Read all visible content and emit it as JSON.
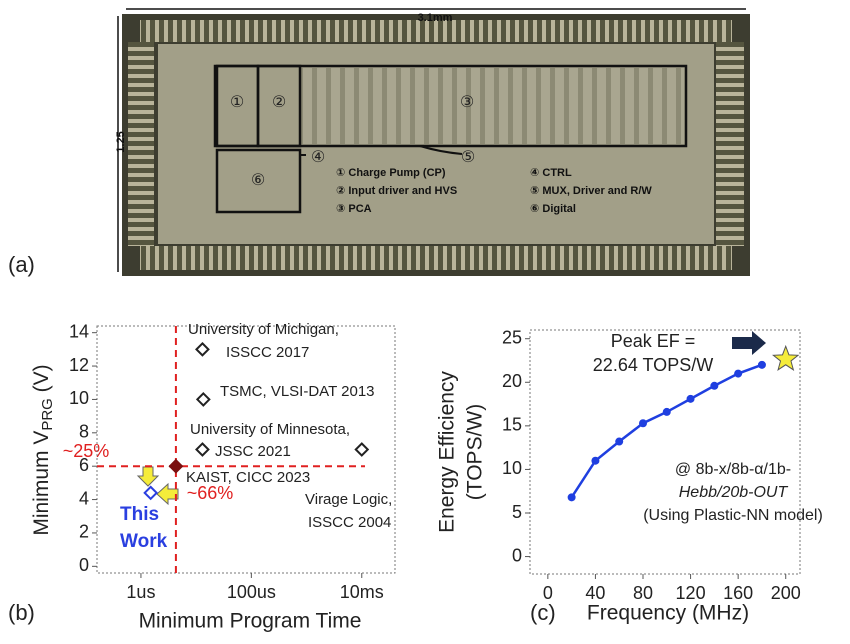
{
  "die_photo": {
    "panel_label": "(a)",
    "width_label": "3.1mm",
    "height_label": "1.25",
    "blocks": [
      "①",
      "②",
      "③",
      "④",
      "⑤",
      "⑥"
    ],
    "legend": [
      "① Charge Pump (CP)",
      "② Input driver and HVS",
      "③ PCA",
      "④ CTRL",
      "⑤ MUX, Driver and R/W",
      "⑥ Digital"
    ]
  },
  "chart_data": [
    {
      "type": "scatter",
      "panel_label": "(b)",
      "ylabel": [
        "Minimum V",
        "PRG",
        " (V)"
      ],
      "xlabel": "Minimum Program Time",
      "log_x": true,
      "xlim": [
        1.6e-07,
        0.04
      ],
      "ylim": [
        -0.4,
        14.4
      ],
      "xticks": [
        {
          "value": 1e-06,
          "label": "1us"
        },
        {
          "value": 0.0001,
          "label": "100us"
        },
        {
          "value": 0.01,
          "label": "10ms"
        }
      ],
      "yticks": [
        0,
        2,
        4,
        6,
        8,
        10,
        12,
        14
      ],
      "points": [
        {
          "label": [
            "University of Michigan,",
            "ISSCC 2017"
          ],
          "x": 1.3e-05,
          "y": 13,
          "color": "#222222"
        },
        {
          "label": [
            "TSMC, VLSI-DAT 2013"
          ],
          "x": 1.35e-05,
          "y": 10,
          "color": "#222222"
        },
        {
          "label": [
            "University of Minnesota,",
            "JSSC 2021"
          ],
          "x": 1.3e-05,
          "y": 7,
          "color": "#222222"
        },
        {
          "label": [
            "KAIST, CICC 2023"
          ],
          "x": 4.3e-06,
          "y": 6,
          "color": "#7a1010"
        },
        {
          "label": [
            "Virage Logic,",
            "ISSCC 2004"
          ],
          "x": 0.01,
          "y": 7,
          "color": "#222222"
        },
        {
          "label": [
            "This",
            "Work"
          ],
          "x": 1.5e-06,
          "y": 4.4,
          "color": "#2a3fe0"
        }
      ],
      "reference_lines": {
        "x": 4.3e-06,
        "y": 6,
        "color": "#e02020"
      },
      "annotations": [
        "~25%",
        "~66%"
      ]
    },
    {
      "type": "line",
      "panel_label": "(c)",
      "ylabel": [
        "Energy Efficiency",
        "(TOPS/W)"
      ],
      "xlabel": "Frequency (MHz)",
      "xlim": [
        -15,
        212
      ],
      "ylim": [
        -2,
        26
      ],
      "xticks": [
        0,
        40,
        80,
        120,
        160,
        200
      ],
      "yticks": [
        0,
        5,
        10,
        15,
        20,
        25
      ],
      "x": [
        20,
        40,
        60,
        80,
        100,
        120,
        140,
        160,
        180
      ],
      "values": [
        6.8,
        11,
        13.2,
        15.3,
        16.6,
        18.1,
        19.6,
        21,
        22
      ],
      "color": "#1f3fe0",
      "peak": {
        "x": 200,
        "y": 22.64,
        "color": "#f5ec3a"
      },
      "annotations": [
        [
          "Peak EF =",
          "22.64 TOPS/W"
        ],
        [
          "@ 8b-x/8b-α/1b-",
          "Hebb/20b-OUT",
          "(Using Plastic-NN model)"
        ]
      ]
    }
  ]
}
